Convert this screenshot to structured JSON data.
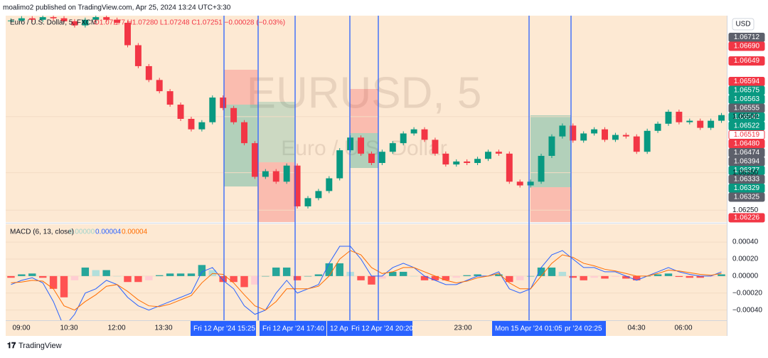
{
  "header": {
    "publisher": "moalimo2 published on TradingView.com, Apr 25, 2024 13:24 UTC+3:30"
  },
  "chart_data": [
    {
      "type": "candlestick",
      "title": "Euro / U.S. Dollar, 5, FXCM",
      "ohlc_legend": "O1.07277 H1.07280 L1.07248 C1.07251 −0.00028 (−0.03%)",
      "watermark": "EURUSD, 5",
      "watermark_subtitle": "Euro / U.S. Dollar",
      "currency": "USD",
      "up_color": "#089981",
      "down_color": "#f23645",
      "closes": [
        1.06757,
        1.06763,
        1.06759,
        1.06766,
        1.06763,
        1.06755,
        1.06744,
        1.06759,
        1.06766,
        1.06759,
        1.06751,
        1.06691,
        1.06635,
        1.06598,
        1.06568,
        1.06532,
        1.06494,
        1.06466,
        1.06485,
        1.06551,
        1.06523,
        1.06485,
        1.06429,
        1.06339,
        1.06354,
        1.06326,
        1.06369,
        1.0626,
        1.06282,
        1.06301,
        1.06335,
        1.0641,
        1.06444,
        1.06401,
        1.06376,
        1.06406,
        1.06429,
        1.06455,
        1.06466,
        1.06438,
        1.06401,
        1.06372,
        1.0638,
        1.06376,
        1.06387,
        1.06406,
        1.06401,
        1.06326,
        1.06316,
        1.06326,
        1.06395,
        1.06447,
        1.06476,
        1.06436,
        1.06455,
        1.06466,
        1.06438,
        1.06451,
        1.06447,
        1.06406,
        1.06462,
        1.06481,
        1.06513,
        1.06485,
        1.06489,
        1.0647,
        1.06489,
        1.06504
      ],
      "ylim": [
        1.06218,
        1.0677
      ],
      "yticks": [
        {
          "value": 1.065,
          "label": "1.06500"
        },
        {
          "value": 1.0635,
          "label": "1.06350"
        },
        {
          "value": 1.0625,
          "label": "1.06250"
        }
      ],
      "price_tags": [
        {
          "value": 1.06712,
          "label": "1.06712",
          "color": "#5d606b"
        },
        {
          "value": 1.0669,
          "label": "1.06690",
          "color": "#f23645"
        },
        {
          "value": 1.06649,
          "label": "1.06649",
          "color": "#f23645"
        },
        {
          "value": 1.06594,
          "label": "1.06594",
          "color": "#f23645"
        },
        {
          "value": 1.06575,
          "label": "1.06575",
          "color": "#089981"
        },
        {
          "value": 1.06563,
          "label": "1.06563",
          "color": "#089981"
        },
        {
          "value": 1.06555,
          "label": "1.06555",
          "color": "#5d606b"
        },
        {
          "value": 1.06542,
          "label": "1.06542",
          "color": "#089981"
        },
        {
          "value": 1.06522,
          "label": "1.06522",
          "color": "#089981"
        },
        {
          "value": 1.06519,
          "label": "1.06519",
          "color": "#ffffff",
          "text_color": "#f23645"
        },
        {
          "value": 1.0648,
          "label": "1.06480",
          "color": "#f23645"
        },
        {
          "value": 1.06474,
          "label": "1.06474",
          "color": "#5d606b"
        },
        {
          "value": 1.06394,
          "label": "1.06394",
          "color": "#5d606b"
        },
        {
          "value": 1.06377,
          "label": "1.06377",
          "color": "#089981"
        },
        {
          "value": 1.06333,
          "label": "1.06333",
          "color": "#5d606b"
        },
        {
          "value": 1.06329,
          "label": "1.06329",
          "color": "#089981"
        },
        {
          "value": 1.06325,
          "label": "1.06325",
          "color": "#5d606b"
        },
        {
          "value": 1.06226,
          "label": "1.06226",
          "color": "#f23645"
        }
      ],
      "x_labels": [
        "09:00",
        "10:30",
        "12:00",
        "13:30",
        "23:00",
        "04:30",
        "06:00"
      ],
      "crosshair_labels": [
        "Fri 12 Apr '24   15:25",
        "Fri 12 Apr '24   17:40",
        "12 Ap",
        "Fri 12 Apr '24   20:20",
        "Mon 15 Apr '24   01:05",
        "pr '24   02:25"
      ]
    },
    {
      "type": "macd",
      "title": "MACD (6, 13, close)",
      "legend_values": [
        {
          "value": 0,
          "label": "0.00000",
          "color": "#9fd3cb"
        },
        {
          "value": 4e-05,
          "label": "0.00004",
          "color": "#2962ff"
        },
        {
          "value": 4e-05,
          "label": "0.00004",
          "color": "#ff6d00"
        }
      ],
      "ylim": [
        -0.00052,
        0.00061
      ],
      "yticks": [
        {
          "value": 0.0004,
          "label": "0.00040"
        },
        {
          "value": 0.0002,
          "label": "0.00020"
        },
        {
          "value": 0,
          "label": "0.00000"
        },
        {
          "value": -0.0002,
          "label": "−0.00020"
        },
        {
          "value": -0.0004,
          "label": "−0.00040"
        }
      ],
      "series": [
        {
          "name": "MACD",
          "color": "#2962ff",
          "values": [
            -0.0001,
            -5e-05,
            -2e-05,
            -8e-05,
            -0.0003,
            -0.0006,
            -0.00045,
            -0.0002,
            -0.00015,
            -5e-05,
            -0.0001,
            -0.00025,
            -0.00035,
            -0.0004,
            -0.00035,
            -0.0003,
            -0.00025,
            -0.0002,
            5e-05,
            0.0001,
            -5e-05,
            -0.00015,
            -0.00035,
            -0.00045,
            -0.0004,
            -0.0002,
            -5e-05,
            -0.0002,
            -0.00015,
            -0.0001,
            0.00015,
            0.00035,
            0.00035,
            0.0002,
            0,
            0,
            0.0001,
            0.00015,
            0.0001,
            0,
            -5e-05,
            -0.0001,
            -0.0001,
            -5e-05,
            0,
            0,
            5e-05,
            -0.00015,
            -0.0002,
            -0.00015,
            0.0001,
            0.00025,
            0.0003,
            0.0002,
            0.0001,
            0.0001,
            5e-05,
            5e-05,
            0,
            -5e-05,
            0,
            5e-05,
            0.0001,
            5e-05,
            2e-05,
            0,
            0,
            5e-05
          ]
        },
        {
          "name": "Signal",
          "color": "#ff6d00",
          "values": [
            -8e-05,
            -7e-05,
            -5e-05,
            -6e-05,
            -0.00015,
            -0.00035,
            -0.0004,
            -0.0003,
            -0.00022,
            -0.00012,
            -0.0001,
            -0.00018,
            -0.00028,
            -0.00035,
            -0.00036,
            -0.00033,
            -0.00028,
            -0.00023,
            -8e-05,
            3e-05,
            2e-05,
            -8e-05,
            -0.00022,
            -0.00035,
            -0.0004,
            -0.0003,
            -0.00015,
            -0.00015,
            -0.00015,
            -0.00012,
            0,
            0.0002,
            0.0003,
            0.00025,
            0.0001,
            3e-05,
            5e-05,
            0.0001,
            0.0001,
            5e-05,
            0,
            -5e-05,
            -8e-05,
            -6e-05,
            -2e-05,
            0,
            3e-05,
            -8e-05,
            -0.00015,
            -0.00015,
            0,
            0.00015,
            0.00025,
            0.00022,
            0.00015,
            0.00012,
            8e-05,
            6e-05,
            3e-05,
            0,
            0,
            3e-05,
            7e-05,
            6e-05,
            4e-05,
            2e-05,
            1e-05,
            3e-05
          ]
        }
      ],
      "histogram": [
        -2e-05,
        2e-05,
        3e-05,
        -2e-05,
        -0.00015,
        -0.00025,
        -5e-05,
        0.0001,
        7e-05,
        7e-05,
        0,
        -7e-05,
        -7e-05,
        -5e-05,
        1e-05,
        3e-05,
        3e-05,
        3e-05,
        0.00013,
        7e-05,
        -7e-05,
        -7e-05,
        -0.00013,
        -0.0001,
        0,
        0.0001,
        0.0001,
        -5e-05,
        0,
        2e-05,
        0.00015,
        0.00015,
        5e-05,
        -5e-05,
        -0.0001,
        -3e-05,
        5e-05,
        5e-05,
        0,
        -5e-05,
        -5e-05,
        -5e-05,
        -2e-05,
        1e-05,
        2e-05,
        0,
        2e-05,
        -7e-05,
        -5e-05,
        0,
        0.0001,
        0.0001,
        5e-05,
        -2e-05,
        -5e-05,
        -2e-05,
        -3e-05,
        -1e-05,
        -3e-05,
        -5e-05,
        0,
        2e-05,
        3e-05,
        -1e-05,
        -2e-05,
        -2e-05,
        -1e-05,
        2e-05
      ]
    }
  ],
  "footer": {
    "brand": "TradingView"
  }
}
